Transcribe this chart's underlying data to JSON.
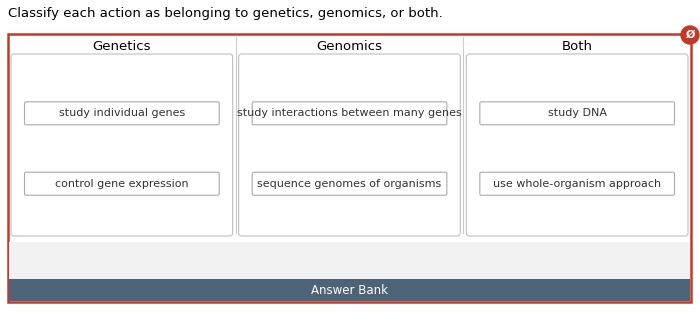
{
  "title": "Classify each action as belonging to genetics, genomics, or both.",
  "title_fontsize": 9.5,
  "columns": [
    "Genetics",
    "Genomics",
    "Both"
  ],
  "col_items": [
    [
      "study individual genes",
      "control gene expression"
    ],
    [
      "study interactions between many genes",
      "sequence genomes of organisms"
    ],
    [
      "study DNA",
      "use whole-organism approach"
    ]
  ],
  "outer_border_color": "#c0392b",
  "answer_bank_label": "Answer Bank",
  "answer_bank_bg": "#4d6478",
  "answer_bank_text_color": "#ffffff",
  "answer_bank_bottom_bg": "#f0f0f0",
  "bg_color": "#ffffff",
  "col_header_fontsize": 9.5,
  "item_fontsize": 8,
  "answer_bank_fontsize": 8.5,
  "cancel_icon_color": "#c0392b"
}
